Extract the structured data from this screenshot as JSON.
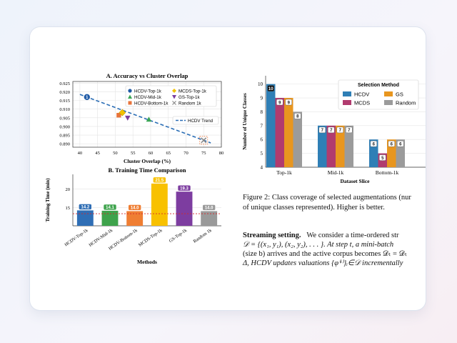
{
  "page": {
    "caption_lines": [
      "Figure 2: Class coverage of selected augmentations (nur",
      "of unique classes represented). Higher is better."
    ],
    "streaming": {
      "heading": "Streaming setting.",
      "line1_rest": "We consider a time-ordered str",
      "line2": "𝒟 = {(x₁, y₁), (x₂, y₂), . . . }. At step t, a mini-batch",
      "line3": "(size b) arrives and the active corpus becomes 𝒟ₜ = 𝒟ₜ",
      "line4": "Δ, HCDV updates valuations {φ⁽ᵗ⁾}ᵢ∈𝒟 incrementally"
    }
  },
  "chart_data": [
    {
      "type": "scatter",
      "title": "A. Accuracy vs Cluster Overlap",
      "xlabel": "Cluster Overlap (%)",
      "ylabel": "",
      "xlim": [
        38,
        80
      ],
      "ylim": [
        0.888,
        0.926
      ],
      "xticks": [
        "40",
        "45",
        "50",
        "55",
        "60",
        "65",
        "70",
        "75",
        "80"
      ],
      "yticks": [
        "0.890",
        "0.895",
        "0.900",
        "0.905",
        "0.910",
        "0.915",
        "0.920",
        "0.925"
      ],
      "grid": true,
      "legend": "top-right",
      "points": [
        {
          "name": "HCDV-Top-1k",
          "x": 42,
          "y": 0.917,
          "label": "1",
          "color": "#1f5aa6",
          "marker": "circle"
        },
        {
          "name": "HCDV-Mid-1k",
          "x": 59.5,
          "y": 0.904,
          "label": "",
          "color": "#3aa655",
          "marker": "triangle"
        },
        {
          "name": "HCDV-Bottom-1k",
          "x": 51,
          "y": 0.9065,
          "label": "",
          "color": "#e8743b",
          "marker": "square"
        },
        {
          "name": "MCDS-Top-1k",
          "x": 52,
          "y": 0.908,
          "label": "",
          "color": "#f2c200",
          "marker": "diamond"
        },
        {
          "name": "GS-Top-1k",
          "x": 53.5,
          "y": 0.905,
          "label": "",
          "color": "#7b3fa0",
          "marker": "triangle-down"
        },
        {
          "name": "Random 1k",
          "x": 75,
          "y": 0.892,
          "label": "",
          "color": "#8a8a8a",
          "marker": "x"
        }
      ],
      "legend_entries": [
        "HCDV-Top-1k",
        "MCDS-Top-1k",
        "HCDV-Mid-1k",
        "GS-Top-1k",
        "HCDV-Bottom-1k",
        "Random 1k"
      ],
      "trend": {
        "name": "HCDV Trend",
        "x": [
          40,
          77
        ],
        "y": [
          0.9185,
          0.8905
        ],
        "color": "#2a6db5"
      }
    },
    {
      "type": "bar",
      "title": "B. Training Time Comparison",
      "xlabel": "Methods",
      "ylabel": "Training Time (min)",
      "ylim": [
        10,
        24
      ],
      "yticks": [
        "15",
        "20"
      ],
      "categories": [
        "HCDV-Top-1k",
        "HCDV-Mid-1k",
        "HCDV-Bottom-1k",
        "MCDS-Top-1k",
        "GS-Top-1k",
        "Random 1k"
      ],
      "values": [
        14.2,
        14.1,
        14.0,
        21.5,
        19.3,
        14.0
      ],
      "value_labels": [
        "14.2",
        "14.1",
        "14.0",
        "21.5",
        "19.3",
        "14.0"
      ],
      "colors": [
        "#2f6eb5",
        "#3ea34c",
        "#ef7e33",
        "#f8c100",
        "#7d3da0",
        "#9a9a9a"
      ],
      "reference_line": {
        "y": 13.3,
        "color": "#d62728"
      }
    },
    {
      "type": "bar",
      "title": "",
      "xlabel": "Dataset Slice",
      "ylabel": "Number of Unique Classes",
      "ylim": [
        4,
        10.6
      ],
      "yticks": [
        "4",
        "5",
        "6",
        "7",
        "8",
        "9",
        "10"
      ],
      "categories": [
        "Top-1k",
        "Mid-1k",
        "Bottom-1k"
      ],
      "legend": "top-right",
      "legend_title": "Selection Method",
      "series": [
        {
          "name": "HCDV",
          "values": [
            10,
            7,
            6
          ],
          "color": "#2f7fb6"
        },
        {
          "name": "MCDS",
          "values": [
            9,
            7,
            5
          ],
          "color": "#b13b6e"
        },
        {
          "name": "GS",
          "values": [
            9,
            7,
            6
          ],
          "color": "#e8961f"
        },
        {
          "name": "Random",
          "values": [
            8,
            7,
            6
          ],
          "color": "#9b9b9b"
        }
      ]
    }
  ]
}
